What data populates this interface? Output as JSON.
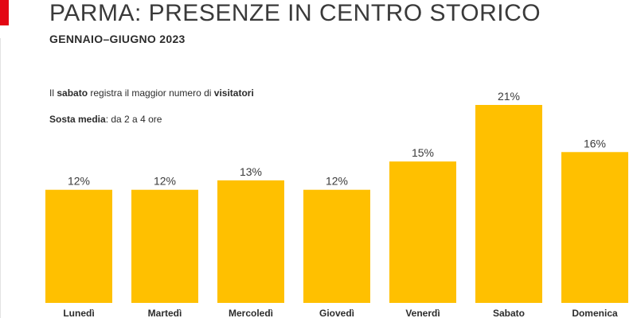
{
  "header": {
    "title": "PARMA: PRESENZE IN CENTRO STORICO",
    "subtitle": "GENNAIO–GIUGNO 2023"
  },
  "notes": {
    "line1": {
      "part1": "Il ",
      "bold1": "sabato",
      "part2": " registra il maggior numero di ",
      "bold2": "visitatori"
    },
    "line2": {
      "bold1": "Sosta media",
      "part1": ": da 2 a 4 ore"
    }
  },
  "colors": {
    "bar": "#ffc000",
    "accent": "#e30613",
    "text": "#2c2c2c"
  },
  "chart_data": {
    "type": "bar",
    "categories": [
      "Lunedì",
      "Martedì",
      "Mercoledì",
      "Giovedì",
      "Venerdì",
      "Sabato",
      "Domenica"
    ],
    "values": [
      12,
      12,
      13,
      12,
      15,
      21,
      16
    ],
    "data_labels": [
      "12%",
      "12%",
      "13%",
      "12%",
      "15%",
      "21%",
      "16%"
    ],
    "title": "PARMA: PRESENZE IN CENTRO STORICO",
    "subtitle": "GENNAIO–GIUGNO 2023",
    "xlabel": "",
    "ylabel": "",
    "unit": "%",
    "ylim": [
      0,
      21
    ],
    "grid": false,
    "legend": "none"
  }
}
